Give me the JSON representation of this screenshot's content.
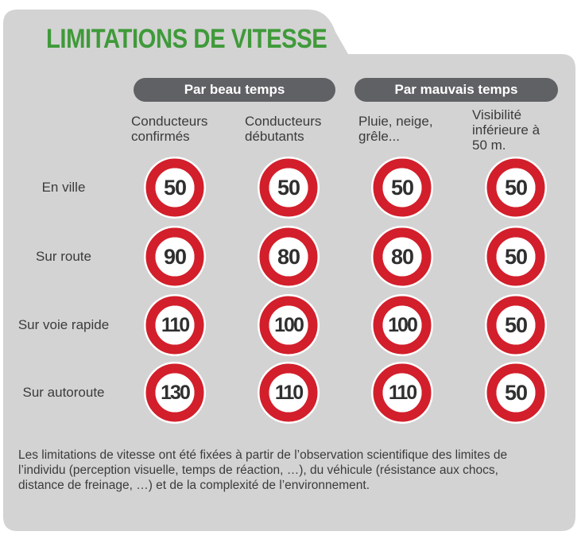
{
  "title": "LIMITATIONS DE VITESSE",
  "groups": {
    "good_weather": "Par beau temps",
    "bad_weather": "Par mauvais temps"
  },
  "columns": [
    "Conducteurs\nconfirmés",
    "Conducteurs\ndébutants",
    "Pluie, neige,\ngrêle...",
    "Visibilité\ninférieure à\n50 m."
  ],
  "rows": [
    {
      "label": "En ville",
      "limits": [
        "50",
        "50",
        "50",
        "50"
      ]
    },
    {
      "label": "Sur route",
      "limits": [
        "90",
        "80",
        "80",
        "50"
      ]
    },
    {
      "label": "Sur voie rapide",
      "limits": [
        "110",
        "100",
        "100",
        "50"
      ]
    },
    {
      "label": "Sur autoroute",
      "limits": [
        "130",
        "110",
        "110",
        "50"
      ]
    }
  ],
  "footnote": "Les limitations de vitesse ont été fixées à partir de l’observation scientifique des limites de l’individu (perception visuelle, temps de réaction, …), du véhicule (résistance aux chocs, distance de freinage, …) et de la complexité de l’environnement.",
  "colors": {
    "panel": "#d3d3d3",
    "title": "#3f9a3a",
    "pill": "#606165",
    "sign_red": "#d21f2b",
    "text": "#3b3b3b"
  }
}
